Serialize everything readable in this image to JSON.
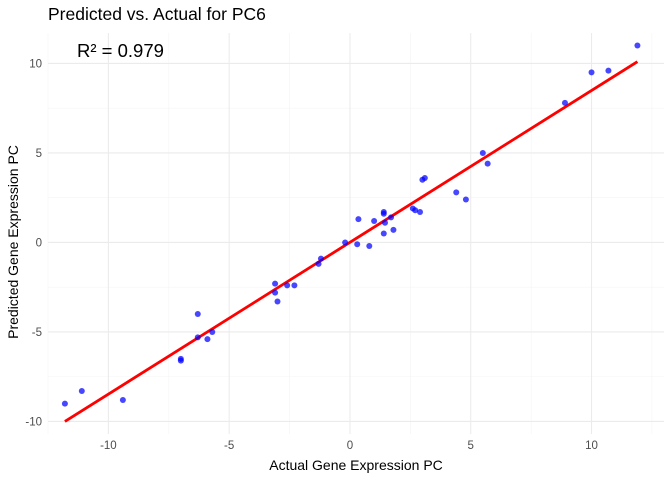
{
  "chart_data": {
    "type": "scatter",
    "title": "Predicted vs. Actual for PC6",
    "xlabel": "Actual Gene Expression PC",
    "ylabel": "Predicted Gene Expression PC",
    "annotation": "R² = 0.979",
    "xlim": [
      -12.5,
      13.0
    ],
    "ylim": [
      -10.7,
      11.7
    ],
    "x_ticks": [
      -10,
      -5,
      0,
      5,
      10
    ],
    "x_tick_labels": [
      "-10",
      "-5",
      "0",
      "5",
      "10"
    ],
    "y_ticks": [
      -10,
      -5,
      0,
      5,
      10
    ],
    "y_tick_labels": [
      "-10",
      "-5",
      "0",
      "5",
      "10"
    ],
    "grid": true,
    "legend": "none",
    "series": [
      {
        "color": "#0000ff",
        "points": [
          {
            "x": -11.8,
            "y": -9.0
          },
          {
            "x": -11.1,
            "y": -8.3
          },
          {
            "x": -9.4,
            "y": -8.8
          },
          {
            "x": -7.0,
            "y": -6.5
          },
          {
            "x": -7.0,
            "y": -6.6
          },
          {
            "x": -6.3,
            "y": -5.3
          },
          {
            "x": -6.3,
            "y": -4.0
          },
          {
            "x": -5.9,
            "y": -5.4
          },
          {
            "x": -5.7,
            "y": -5.0
          },
          {
            "x": -3.1,
            "y": -2.3
          },
          {
            "x": -3.1,
            "y": -2.8
          },
          {
            "x": -3.0,
            "y": -3.3
          },
          {
            "x": -2.6,
            "y": -2.4
          },
          {
            "x": -2.3,
            "y": -2.4
          },
          {
            "x": -1.3,
            "y": -1.2
          },
          {
            "x": -1.2,
            "y": -0.9
          },
          {
            "x": -0.2,
            "y": 0.0
          },
          {
            "x": 0.3,
            "y": -0.1
          },
          {
            "x": 0.35,
            "y": 1.3
          },
          {
            "x": 0.8,
            "y": -0.2
          },
          {
            "x": 1.0,
            "y": 1.2
          },
          {
            "x": 1.4,
            "y": 1.6
          },
          {
            "x": 1.4,
            "y": 1.7
          },
          {
            "x": 1.45,
            "y": 1.1
          },
          {
            "x": 1.4,
            "y": 0.5
          },
          {
            "x": 1.7,
            "y": 1.4
          },
          {
            "x": 1.8,
            "y": 0.7
          },
          {
            "x": 2.6,
            "y": 1.9
          },
          {
            "x": 2.7,
            "y": 1.8
          },
          {
            "x": 2.9,
            "y": 1.7
          },
          {
            "x": 3.0,
            "y": 3.5
          },
          {
            "x": 3.1,
            "y": 3.6
          },
          {
            "x": 4.4,
            "y": 2.8
          },
          {
            "x": 4.8,
            "y": 2.4
          },
          {
            "x": 5.5,
            "y": 5.0
          },
          {
            "x": 5.7,
            "y": 4.4
          },
          {
            "x": 8.9,
            "y": 7.8
          },
          {
            "x": 10.0,
            "y": 9.5
          },
          {
            "x": 10.7,
            "y": 9.6
          },
          {
            "x": 11.9,
            "y": 11.0
          }
        ]
      }
    ],
    "fit_line": {
      "color": "#ff0000",
      "x": [
        -11.8,
        11.9
      ],
      "y": [
        -10.0,
        10.1
      ]
    }
  }
}
